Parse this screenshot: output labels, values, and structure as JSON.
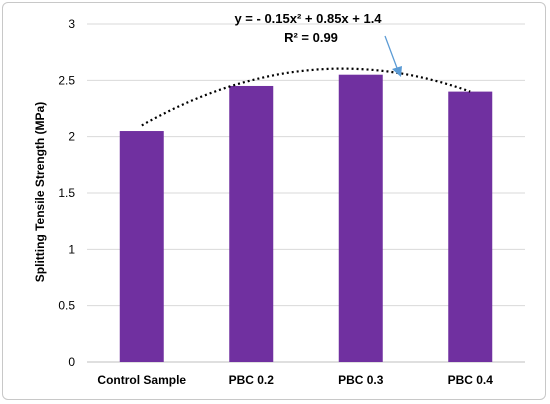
{
  "chart_data": {
    "type": "bar",
    "categories": [
      "Control Sample",
      "PBC 0.2",
      "PBC 0.3",
      "PBC 0.4"
    ],
    "values": [
      2.05,
      2.45,
      2.55,
      2.4
    ],
    "ylabel": "Splitting Tensile Strength (MPa)",
    "xlabel": "",
    "ylim": [
      0,
      3
    ],
    "yticks": [
      "0",
      "0.5",
      "1",
      "1.5",
      "2",
      "2.5",
      "3"
    ],
    "bar_color": "#7030A0",
    "grid": true,
    "trendline": {
      "type": "polynomial",
      "equation": "y = - 0.15x² + 0.85x + 1.4",
      "r_squared": "R² = 0.99",
      "coefficients": [
        -0.15,
        0.85,
        1.4
      ]
    },
    "annotation_arrow_color": "#5B9BD5"
  }
}
